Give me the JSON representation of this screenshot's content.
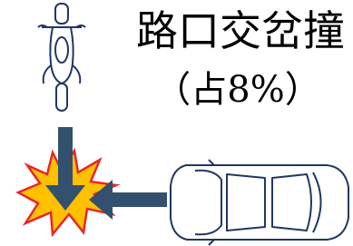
{
  "title": "路口交岔撞",
  "subtitle": "（占8%）"
}
